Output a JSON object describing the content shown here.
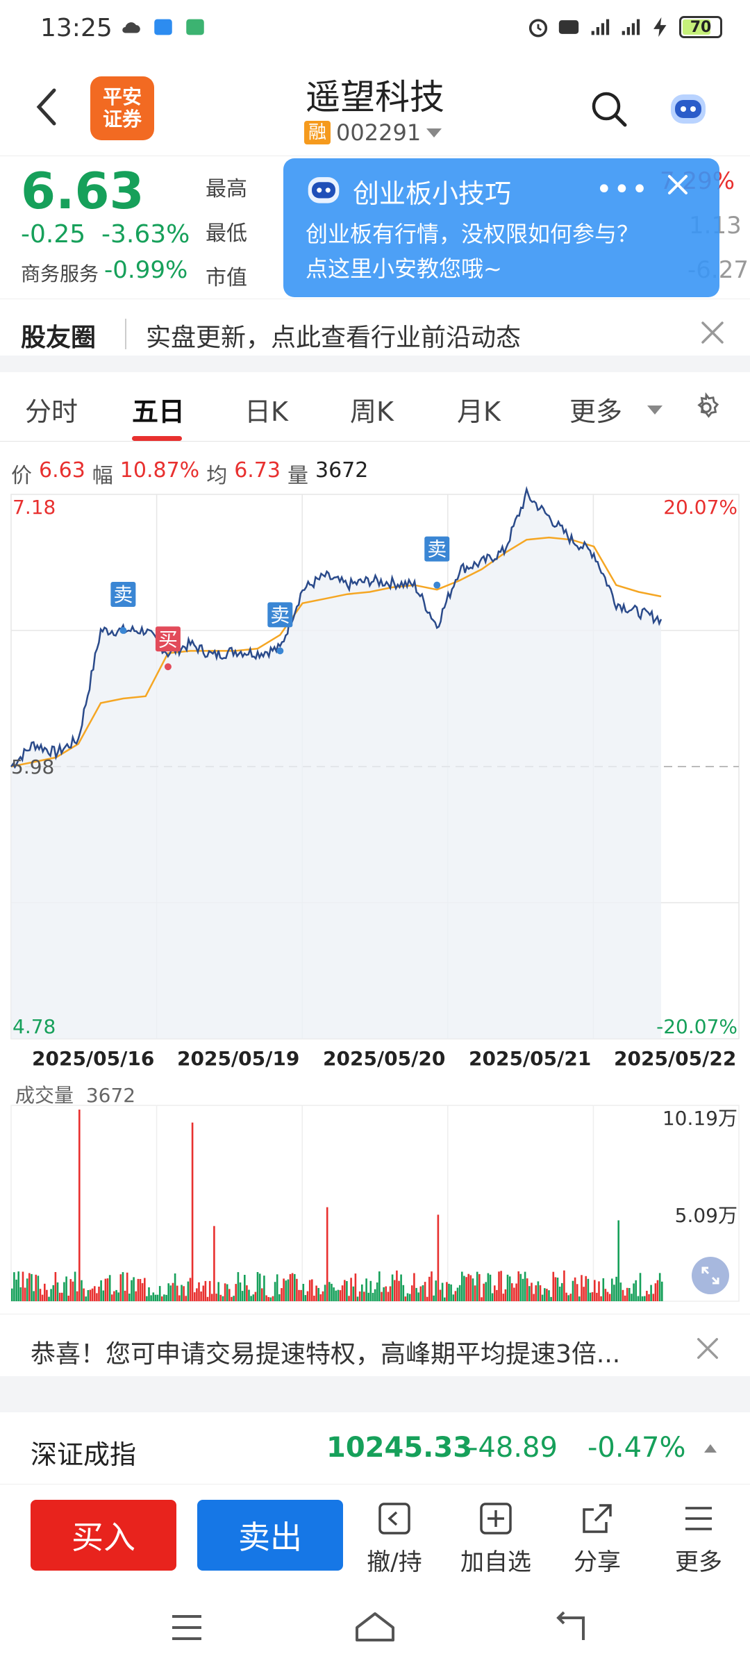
{
  "status": {
    "time": "13:25",
    "battery": "70"
  },
  "header": {
    "logo_line1": "平安",
    "logo_line2": "证券",
    "stock_name": "遥望科技",
    "margin_badge": "融",
    "code": "002291"
  },
  "quote": {
    "price": "6.63",
    "change": "-0.25",
    "change_pct": "-3.63%",
    "sector_name": "商务服务",
    "sector_change": "-0.99%",
    "high_label": "最高",
    "low_label": "最低",
    "mcap_label": "市值",
    "right_high": "7.29%",
    "right_low": "1.13",
    "right_pe": "-6.27"
  },
  "tip": {
    "title": "创业板小技巧",
    "line1": "创业板有行情，没权限如何参与？",
    "line2": "点这里小安教您哦~",
    "more": "•••"
  },
  "community": {
    "label": "股友圈",
    "text": "实盘更新，点此查看行业前沿动态"
  },
  "tabs": [
    {
      "label": "分时"
    },
    {
      "label": "五日"
    },
    {
      "label": "日K"
    },
    {
      "label": "周K"
    },
    {
      "label": "月K"
    },
    {
      "label": "更多"
    }
  ],
  "legend": {
    "price_label": "价",
    "price": "6.63",
    "amp_label": "幅",
    "amp": "10.87%",
    "avg_label": "均",
    "avg": "6.73",
    "vol_label": "量",
    "vol": "3672"
  },
  "chart_data": {
    "type": "line",
    "y_left_max": "7.18",
    "y_left_base": "5.98",
    "y_left_min": "4.78",
    "y_right_max": "20.07%",
    "y_right_min": "-20.07%",
    "ylim": [
      4.78,
      7.18
    ],
    "base": 5.98,
    "dates": [
      "2025/05/16",
      "2025/05/19",
      "2025/05/20",
      "2025/05/21",
      "2025/05/22"
    ],
    "price": [
      5.98,
      6.08,
      6.04,
      6.1,
      6.58,
      6.58,
      6.58,
      6.48,
      6.52,
      6.47,
      6.49,
      6.48,
      6.5,
      6.76,
      6.82,
      6.78,
      6.8,
      6.79,
      6.78,
      6.6,
      6.85,
      6.88,
      6.93,
      7.18,
      7.08,
      6.98,
      6.92,
      6.7,
      6.66,
      6.63
    ],
    "avg": [
      5.98,
      6.0,
      6.02,
      6.08,
      6.26,
      6.28,
      6.29,
      6.48,
      6.49,
      6.49,
      6.49,
      6.5,
      6.56,
      6.7,
      6.72,
      6.74,
      6.75,
      6.77,
      6.78,
      6.76,
      6.8,
      6.85,
      6.92,
      6.98,
      6.99,
      6.98,
      6.95,
      6.78,
      6.75,
      6.73
    ],
    "markers": [
      {
        "label": "卖",
        "price": 6.58
      },
      {
        "label": "买",
        "price": 6.42
      },
      {
        "label": "卖",
        "price": 6.49
      },
      {
        "label": "卖",
        "price": 6.78
      }
    ],
    "volume_label": "成交量",
    "volume_value": "3672",
    "vol_max_label": "10.19万",
    "vol_mid_label": "5.09万",
    "vol_max": 10.19,
    "volumes": [
      1,
      2,
      1,
      10.19,
      3,
      2,
      1,
      1,
      9.5,
      4,
      2,
      2,
      1,
      1,
      5,
      3,
      2,
      1,
      1,
      4.6,
      3,
      2,
      1,
      5.5,
      3,
      2,
      1,
      4.3,
      2,
      1
    ]
  },
  "notice": {
    "text": "恭喜！您可申请交易提速特权，高峰期平均提速3倍..."
  },
  "index": {
    "name": "深证成指",
    "value": "10245.33",
    "change": "-48.89",
    "change_pct": "-0.47%"
  },
  "bottom": {
    "buy": "买入",
    "sell": "卖出",
    "withdraw": "撤/持",
    "add": "加自选",
    "share": "分享",
    "more": "更多"
  },
  "colors": {
    "up": "#e8302f",
    "down": "#16a05a",
    "line": "#2a4a8a",
    "avg": "#f5a623"
  }
}
